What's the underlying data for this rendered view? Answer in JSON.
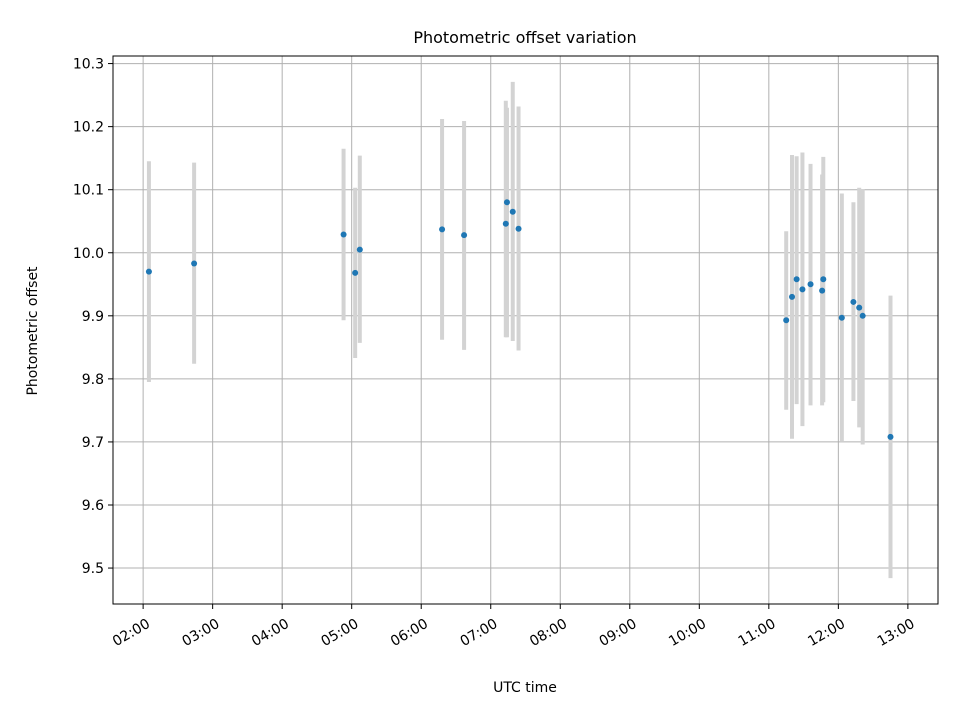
{
  "chart_data": {
    "type": "scatter",
    "title": "Photometric offset variation",
    "xlabel": "UTC time",
    "ylabel": "Photometric offset",
    "xlim": [
      "01:34",
      "13:26"
    ],
    "ylim": [
      9.443,
      10.312
    ],
    "x_ticks": [
      "02:00",
      "03:00",
      "04:00",
      "05:00",
      "06:00",
      "07:00",
      "08:00",
      "09:00",
      "10:00",
      "11:00",
      "12:00",
      "13:00"
    ],
    "y_ticks": [
      9.5,
      9.6,
      9.7,
      9.8,
      9.9,
      10.0,
      10.1,
      10.2,
      10.3
    ],
    "y_tick_labels": [
      "9.5",
      "9.6",
      "9.7",
      "9.8",
      "9.9",
      "10.0",
      "10.1",
      "10.2",
      "10.3"
    ],
    "grid": true,
    "error_bar_color": "#d3d3d3",
    "marker_color": "#1f77b4",
    "series": [
      {
        "points": [
          {
            "x": "02:05",
            "y": 9.97,
            "yerr_low": 9.795,
            "yerr_high": 10.145
          },
          {
            "x": "02:44",
            "y": 9.983,
            "yerr_low": 9.824,
            "yerr_high": 10.143
          },
          {
            "x": "04:53",
            "y": 10.029,
            "yerr_low": 9.893,
            "yerr_high": 10.165
          },
          {
            "x": "05:03",
            "y": 9.968,
            "yerr_low": 9.833,
            "yerr_high": 10.103
          },
          {
            "x": "05:07",
            "y": 10.005,
            "yerr_low": 9.857,
            "yerr_high": 10.154
          },
          {
            "x": "06:18",
            "y": 10.037,
            "yerr_low": 9.862,
            "yerr_high": 10.212
          },
          {
            "x": "06:37",
            "y": 10.028,
            "yerr_low": 9.846,
            "yerr_high": 10.209
          },
          {
            "x": "07:13",
            "y": 10.046,
            "yerr_low": 9.866,
            "yerr_high": 10.241
          },
          {
            "x": "07:14",
            "y": 10.08,
            "yerr_low": 9.866,
            "yerr_high": 10.23
          },
          {
            "x": "07:19",
            "y": 10.065,
            "yerr_low": 9.86,
            "yerr_high": 10.271
          },
          {
            "x": "07:24",
            "y": 10.038,
            "yerr_low": 9.845,
            "yerr_high": 10.232
          },
          {
            "x": "11:15",
            "y": 9.893,
            "yerr_low": 9.751,
            "yerr_high": 10.034
          },
          {
            "x": "11:20",
            "y": 9.93,
            "yerr_low": 9.705,
            "yerr_high": 10.155
          },
          {
            "x": "11:24",
            "y": 9.958,
            "yerr_low": 9.76,
            "yerr_high": 10.153
          },
          {
            "x": "11:29",
            "y": 9.942,
            "yerr_low": 9.725,
            "yerr_high": 10.159
          },
          {
            "x": "11:36",
            "y": 9.95,
            "yerr_low": 9.758,
            "yerr_high": 10.141
          },
          {
            "x": "11:46",
            "y": 9.94,
            "yerr_low": 9.758,
            "yerr_high": 10.124
          },
          {
            "x": "11:47",
            "y": 9.958,
            "yerr_low": 9.763,
            "yerr_high": 10.152
          },
          {
            "x": "12:03",
            "y": 9.897,
            "yerr_low": 9.7,
            "yerr_high": 10.094
          },
          {
            "x": "12:13",
            "y": 9.922,
            "yerr_low": 9.765,
            "yerr_high": 10.08
          },
          {
            "x": "12:18",
            "y": 9.913,
            "yerr_low": 9.723,
            "yerr_high": 10.103
          },
          {
            "x": "12:21",
            "y": 9.9,
            "yerr_low": 9.696,
            "yerr_high": 10.101
          },
          {
            "x": "12:45",
            "y": 9.708,
            "yerr_low": 9.484,
            "yerr_high": 9.932
          }
        ]
      }
    ]
  }
}
